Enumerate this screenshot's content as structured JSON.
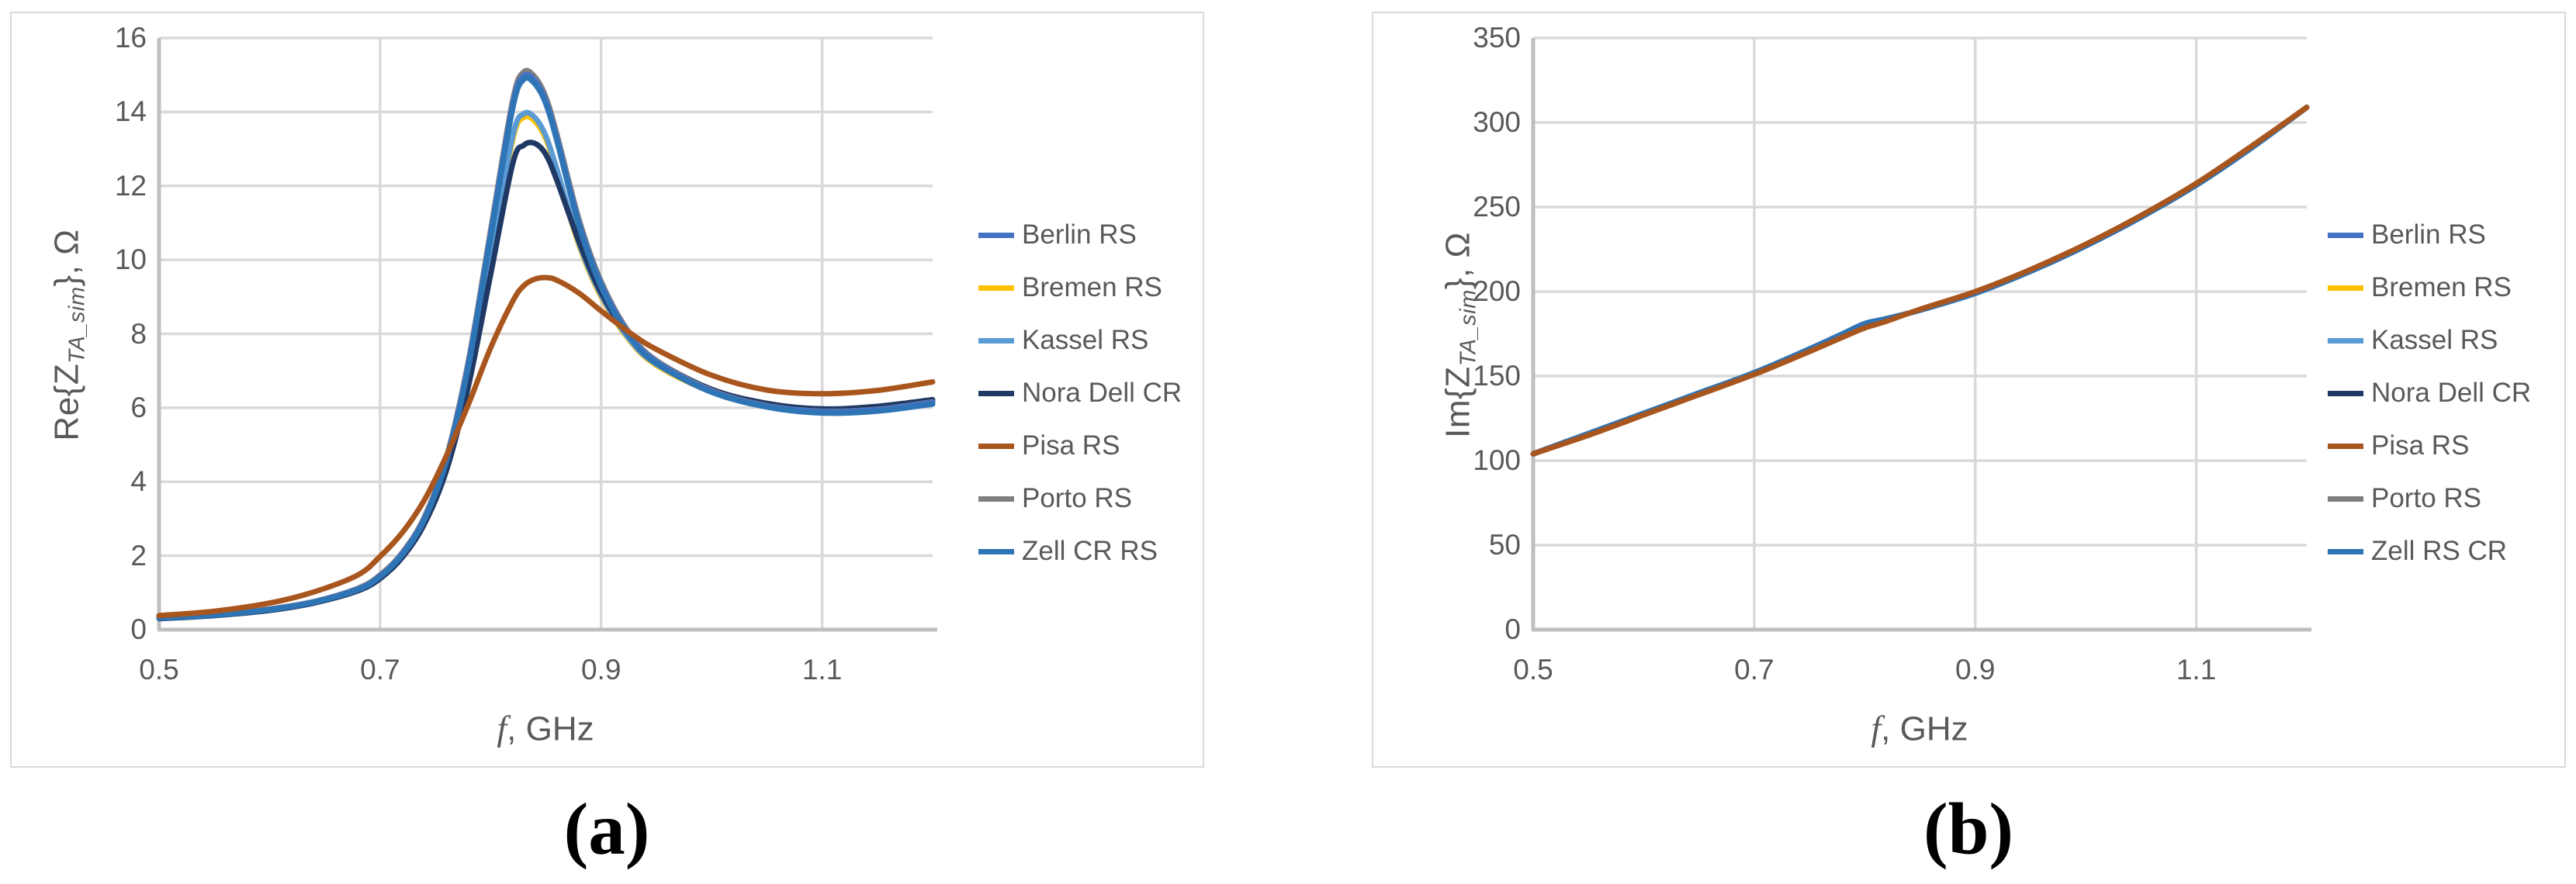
{
  "figure": {
    "colors": {
      "background": "#FFFFFF",
      "panel_border": "#D9D9D9",
      "gridline": "#D9D9D9",
      "axis_line": "#BFBFBF",
      "text": "#595959",
      "caption_text": "#000000"
    }
  },
  "chart_data": [
    {
      "id": "a",
      "type": "line",
      "caption": "(a)",
      "title": "",
      "ylabel": "Re{Z_TA_sim}, Ω",
      "ylabel_parts": {
        "prefix": "Re{Z",
        "sub": "TA_sim",
        "suffix": "}, Ω"
      },
      "xlabel": "f, GHz",
      "xlabel_parts": {
        "var": "f",
        "rest": ", GHz"
      },
      "xlim": [
        0.5,
        1.2
      ],
      "ylim": [
        0,
        16
      ],
      "xticks": [
        0.5,
        0.7,
        0.9,
        1.1
      ],
      "xtick_labels": [
        "0.5",
        "0.7",
        "0.9",
        "1.1"
      ],
      "yticks": [
        0,
        2,
        4,
        6,
        8,
        10,
        12,
        14,
        16
      ],
      "ytick_labels": [
        "0",
        "2",
        "4",
        "6",
        "8",
        "10",
        "12",
        "14",
        "16"
      ],
      "grid": true,
      "legend_position": "right",
      "x": [
        0.5,
        0.55,
        0.6,
        0.64,
        0.68,
        0.7,
        0.72,
        0.74,
        0.76,
        0.78,
        0.8,
        0.82,
        0.83,
        0.84,
        0.85,
        0.86,
        0.88,
        0.9,
        0.925,
        0.95,
        1.0,
        1.05,
        1.1,
        1.15,
        1.2
      ],
      "draw_order": [
        1,
        2,
        3,
        5,
        0,
        6,
        4
      ],
      "series": [
        {
          "key": "berlin-rs",
          "name": "Berlin RS",
          "color": "#4472C4",
          "values": [
            0.32,
            0.4,
            0.55,
            0.75,
            1.1,
            1.45,
            2.05,
            3.0,
            4.6,
            7.2,
            10.7,
            14.2,
            14.97,
            14.85,
            14.3,
            13.3,
            11.0,
            9.35,
            8.0,
            7.25,
            6.45,
            6.05,
            5.9,
            5.95,
            6.15
          ]
        },
        {
          "key": "bremen-rs",
          "name": "Bremen RS",
          "color": "#FFC000",
          "values": [
            0.32,
            0.4,
            0.54,
            0.74,
            1.07,
            1.41,
            1.99,
            2.9,
            4.42,
            6.85,
            10.02,
            13.25,
            13.85,
            13.75,
            13.27,
            12.38,
            10.4,
            9.0,
            7.85,
            7.15,
            6.43,
            6.05,
            5.9,
            5.96,
            6.15
          ]
        },
        {
          "key": "kassel-rs",
          "name": "Kassel RS",
          "color": "#5B9BD5",
          "values": [
            0.32,
            0.4,
            0.54,
            0.74,
            1.08,
            1.42,
            2.0,
            2.92,
            4.45,
            6.9,
            10.1,
            13.35,
            13.95,
            13.85,
            13.35,
            12.45,
            10.45,
            9.05,
            7.88,
            7.18,
            6.45,
            6.07,
            5.92,
            5.98,
            6.17
          ]
        },
        {
          "key": "nora-dell-cr",
          "name": "Nora Dell CR",
          "color": "#1F3864",
          "values": [
            0.3,
            0.38,
            0.52,
            0.72,
            1.05,
            1.38,
            1.95,
            2.85,
            4.3,
            6.6,
            9.6,
            12.6,
            13.1,
            13.15,
            12.85,
            12.15,
            10.5,
            9.12,
            7.95,
            7.27,
            6.5,
            6.12,
            5.97,
            6.04,
            6.22
          ]
        },
        {
          "key": "pisa-rs",
          "name": "Pisa RS",
          "color": "#A9561E",
          "values": [
            0.38,
            0.5,
            0.72,
            1.02,
            1.48,
            1.98,
            2.62,
            3.5,
            4.7,
            6.1,
            7.62,
            8.88,
            9.3,
            9.48,
            9.52,
            9.45,
            9.1,
            8.62,
            8.05,
            7.58,
            6.88,
            6.48,
            6.38,
            6.47,
            6.7
          ]
        },
        {
          "key": "porto-rs",
          "name": "Porto RS",
          "color": "#7F7F7F",
          "values": [
            0.33,
            0.41,
            0.56,
            0.76,
            1.12,
            1.48,
            2.08,
            3.04,
            4.66,
            7.28,
            10.8,
            14.32,
            15.08,
            14.95,
            14.4,
            13.4,
            11.1,
            9.42,
            8.05,
            7.28,
            6.47,
            6.06,
            5.91,
            5.96,
            6.16
          ]
        },
        {
          "key": "zell-cr-rs",
          "name": "Zell CR RS",
          "color": "#2E75B6",
          "values": [
            0.31,
            0.39,
            0.54,
            0.74,
            1.08,
            1.43,
            2.02,
            2.96,
            4.55,
            7.12,
            10.6,
            14.1,
            14.88,
            14.76,
            14.22,
            13.22,
            10.92,
            9.28,
            7.95,
            7.2,
            6.42,
            6.02,
            5.86,
            5.91,
            6.1
          ]
        }
      ]
    },
    {
      "id": "b",
      "type": "line",
      "caption": "(b)",
      "title": "",
      "ylabel": "Im{Z_TA_sim}, Ω",
      "ylabel_parts": {
        "prefix": "Im{Z",
        "sub": "TA_sim",
        "suffix": "}, Ω"
      },
      "xlabel": "f, GHz",
      "xlabel_parts": {
        "var": "f",
        "rest": ", GHz"
      },
      "xlim": [
        0.5,
        1.2
      ],
      "ylim": [
        0,
        350
      ],
      "xticks": [
        0.5,
        0.7,
        0.9,
        1.1
      ],
      "xtick_labels": [
        "0.5",
        "0.7",
        "0.9",
        "1.1"
      ],
      "yticks": [
        0,
        50,
        100,
        150,
        200,
        250,
        300,
        350
      ],
      "ytick_labels": [
        "0",
        "50",
        "100",
        "150",
        "200",
        "250",
        "300",
        "350"
      ],
      "grid": true,
      "legend_position": "right",
      "x": [
        0.5,
        0.55,
        0.6,
        0.65,
        0.7,
        0.75,
        0.78,
        0.8,
        0.82,
        0.85,
        0.9,
        0.95,
        1.0,
        1.05,
        1.1,
        1.15,
        1.2
      ],
      "draw_order": [
        1,
        2,
        3,
        5,
        0,
        6,
        4
      ],
      "series": [
        {
          "key": "berlin-rs",
          "name": "Berlin RS",
          "color": "#4472C4",
          "values": [
            104,
            116,
            128,
            140,
            152,
            166,
            175,
            181,
            184,
            189,
            199,
            212,
            227,
            244,
            263,
            285,
            309
          ]
        },
        {
          "key": "bremen-rs",
          "name": "Bremen RS",
          "color": "#FFC000",
          "values": [
            104,
            116,
            128,
            140,
            152,
            166,
            175,
            181,
            184,
            189,
            199,
            212,
            227,
            244,
            263,
            285,
            309
          ]
        },
        {
          "key": "kassel-rs",
          "name": "Kassel RS",
          "color": "#5B9BD5",
          "values": [
            104,
            116,
            128,
            140,
            152,
            166,
            175,
            181,
            184,
            189,
            199,
            212,
            227,
            244,
            263,
            285,
            309
          ]
        },
        {
          "key": "nora-dell-cr",
          "name": "Nora Dell CR",
          "color": "#1F3864",
          "values": [
            104,
            116,
            128,
            140,
            152,
            166,
            175,
            181,
            184,
            189,
            199,
            212,
            227,
            244,
            263,
            285,
            309
          ]
        },
        {
          "key": "pisa-rs",
          "name": "Pisa RS",
          "color": "#A9561E",
          "values": [
            104,
            115,
            127,
            139,
            151,
            164.5,
            173,
            178.5,
            182.5,
            189.5,
            200,
            213,
            228,
            245,
            264,
            286,
            309
          ]
        },
        {
          "key": "porto-rs",
          "name": "Porto RS",
          "color": "#7F7F7F",
          "values": [
            104,
            116,
            128,
            140,
            152,
            166,
            175,
            181,
            184,
            189,
            199,
            212,
            227,
            244,
            263,
            285,
            309
          ]
        },
        {
          "key": "zell-rs-cr",
          "name": "Zell RS CR",
          "color": "#2E75B6",
          "values": [
            104,
            116,
            128,
            140,
            152,
            166,
            175,
            181,
            184,
            189,
            199,
            212,
            227,
            244,
            263,
            285,
            309
          ]
        }
      ]
    }
  ]
}
